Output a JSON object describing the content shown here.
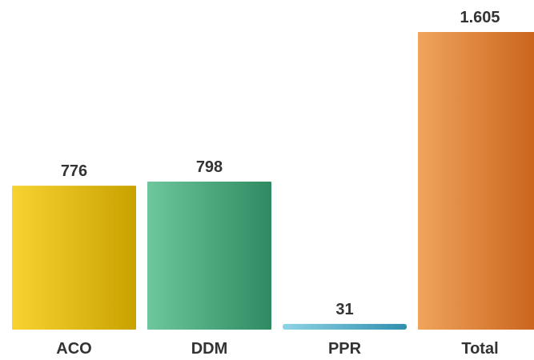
{
  "chart_data": {
    "type": "bar",
    "categories": [
      "ACO",
      "DDM",
      "PPR",
      "Total"
    ],
    "values": [
      776,
      798,
      31,
      1605
    ],
    "value_labels": [
      "776",
      "798",
      "31",
      "1.605"
    ],
    "colors": [
      {
        "light": "#f7d332",
        "dark": "#c9a200"
      },
      {
        "light": "#6ec79c",
        "dark": "#2f8a62"
      },
      {
        "light": "#8fd3e6",
        "dark": "#2e8fae"
      },
      {
        "light": "#f0a45c",
        "dark": "#c8611a"
      }
    ],
    "ylim": [
      0,
      1605
    ],
    "grid": false,
    "legend": "none"
  }
}
